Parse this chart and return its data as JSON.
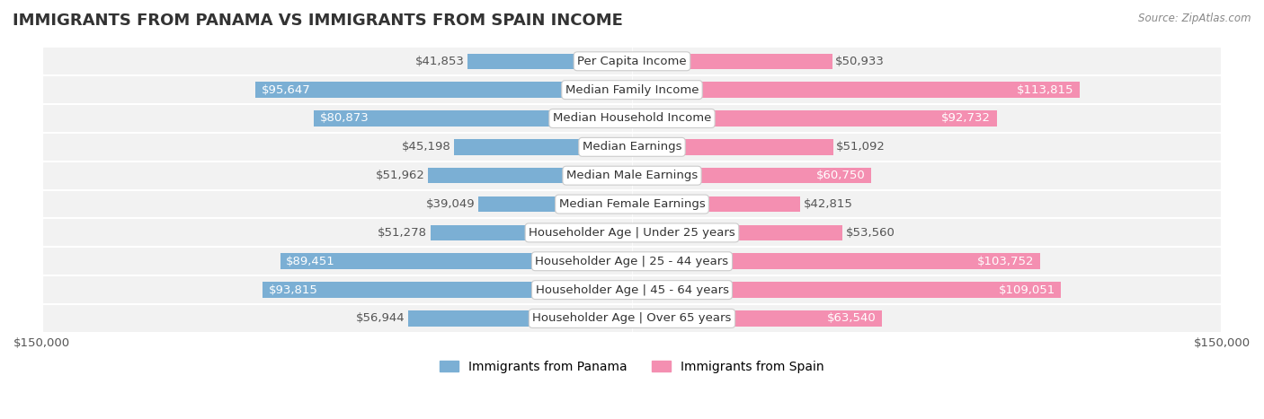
{
  "title": "IMMIGRANTS FROM PANAMA VS IMMIGRANTS FROM SPAIN INCOME",
  "source": "Source: ZipAtlas.com",
  "categories": [
    "Per Capita Income",
    "Median Family Income",
    "Median Household Income",
    "Median Earnings",
    "Median Male Earnings",
    "Median Female Earnings",
    "Householder Age | Under 25 years",
    "Householder Age | 25 - 44 years",
    "Householder Age | 45 - 64 years",
    "Householder Age | Over 65 years"
  ],
  "panama_values": [
    41853,
    95647,
    80873,
    45198,
    51962,
    39049,
    51278,
    89451,
    93815,
    56944
  ],
  "spain_values": [
    50933,
    113815,
    92732,
    51092,
    60750,
    42815,
    53560,
    103752,
    109051,
    63540
  ],
  "panama_color": "#7bafd4",
  "spain_color": "#f48fb1",
  "panama_label_color_threshold": 60000,
  "spain_label_color_threshold": 60000,
  "max_value": 150000,
  "bar_height": 0.55,
  "bg_color": "#f5f5f5",
  "row_bg_color": "#f0f0f0",
  "label_fontsize": 9.5,
  "title_fontsize": 13,
  "legend_fontsize": 10,
  "axis_label": "$150,000",
  "legend_panama": "Immigrants from Panama",
  "legend_spain": "Immigrants from Spain"
}
